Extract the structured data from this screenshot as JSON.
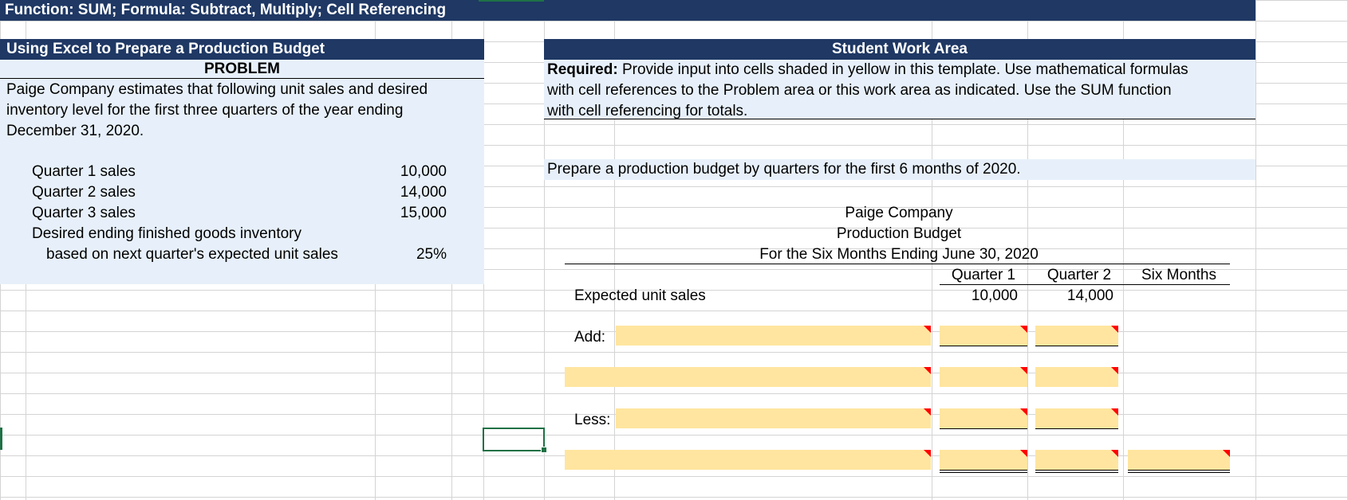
{
  "banner": {
    "title": "Function: SUM; Formula: Subtract, Multiply; Cell Referencing"
  },
  "problem": {
    "header": "Using Excel to Prepare a Production Budget",
    "subheader": "PROBLEM",
    "description_lines": [
      "Paige Company estimates that following unit sales and desired",
      "inventory level for the first three quarters of the year ending",
      "December 31, 2020."
    ],
    "items": [
      {
        "label": "Quarter 1 sales",
        "value": "10,000"
      },
      {
        "label": "Quarter 2 sales",
        "value": "14,000"
      },
      {
        "label": "Quarter 3 sales",
        "value": "15,000"
      },
      {
        "label": "Desired ending finished goods inventory",
        "value": ""
      },
      {
        "label": "based on next quarter's expected unit sales",
        "value": "25%"
      }
    ]
  },
  "work_area": {
    "header": "Student Work Area",
    "required_label": "Required:",
    "required_lines": [
      " Provide input into cells shaded in yellow in this template. Use mathematical formulas",
      "with cell references to the Problem area or this work area as indicated. Use the SUM function",
      "with cell referencing for totals."
    ],
    "instruction": "Prepare a production budget by quarters for the first 6 months of 2020."
  },
  "budget": {
    "company": "Paige Company",
    "title": "Production Budget",
    "period": "For the Six Months Ending June 30, 2020",
    "columns": [
      "Quarter 1",
      "Quarter 2",
      "Six Months"
    ],
    "expected_label": "Expected unit sales",
    "expected_values": [
      "10,000",
      "14,000"
    ],
    "add_label": "Add:",
    "less_label": "Less:"
  }
}
